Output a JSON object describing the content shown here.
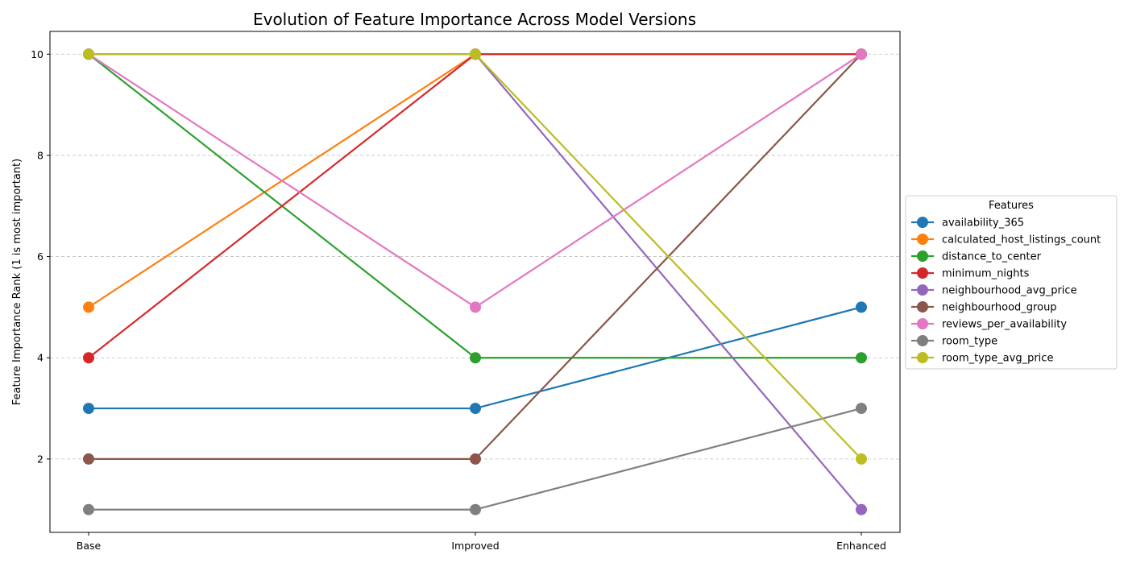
{
  "chart_data": {
    "type": "line",
    "title": "Evolution of Feature Importance Across Model Versions",
    "xlabel": "",
    "ylabel": "Feature Importance Rank (1 is most important)",
    "categories": [
      "Base",
      "Improved",
      "Enhanced"
    ],
    "ylim": [
      0.55,
      10.45
    ],
    "yticks": [
      2,
      4,
      6,
      8,
      10
    ],
    "grid": "y-dashed",
    "legend": {
      "title": "Features",
      "placement": "right"
    },
    "series": [
      {
        "name": "availability_365",
        "color": "#1f77b4",
        "values": [
          3,
          3,
          5
        ]
      },
      {
        "name": "calculated_host_listings_count",
        "color": "#ff7f0e",
        "values": [
          5,
          10,
          10
        ]
      },
      {
        "name": "distance_to_center",
        "color": "#2ca02c",
        "values": [
          10,
          4,
          4
        ]
      },
      {
        "name": "minimum_nights",
        "color": "#d62728",
        "values": [
          4,
          10,
          10
        ]
      },
      {
        "name": "neighbourhood_avg_price",
        "color": "#9467bd",
        "values": [
          10,
          10,
          1
        ]
      },
      {
        "name": "neighbourhood_group",
        "color": "#8c564b",
        "values": [
          2,
          2,
          10
        ]
      },
      {
        "name": "reviews_per_availability",
        "color": "#e377c2",
        "values": [
          10,
          5,
          10
        ]
      },
      {
        "name": "room_type",
        "color": "#7f7f7f",
        "values": [
          1,
          1,
          3
        ]
      },
      {
        "name": "room_type_avg_price",
        "color": "#bcbd22",
        "values": [
          10,
          10,
          2
        ]
      }
    ]
  }
}
